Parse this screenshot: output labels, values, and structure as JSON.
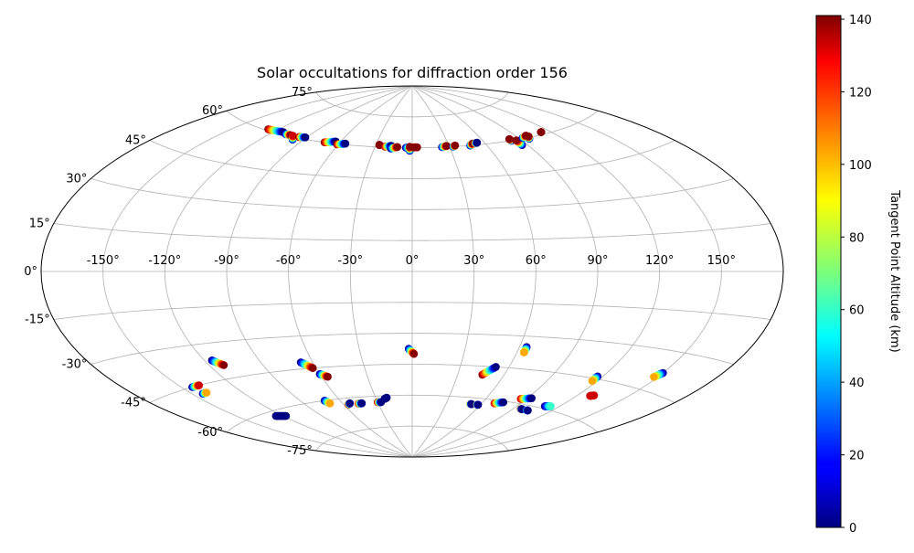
{
  "chart_data": {
    "type": "scatter",
    "projection": "aitoff",
    "title": "Solar occultations for diffraction order 156",
    "longitude_ticks": [
      {
        "value": -150,
        "label": "-150°"
      },
      {
        "value": -120,
        "label": "-120°"
      },
      {
        "value": -90,
        "label": "-90°"
      },
      {
        "value": -60,
        "label": "-60°"
      },
      {
        "value": -30,
        "label": "-30°"
      },
      {
        "value": 0,
        "label": "0°"
      },
      {
        "value": 30,
        "label": "30°"
      },
      {
        "value": 60,
        "label": "60°"
      },
      {
        "value": 90,
        "label": "90°"
      },
      {
        "value": 120,
        "label": "120°"
      },
      {
        "value": 150,
        "label": "150°"
      }
    ],
    "latitude_ticks": [
      {
        "value": 75,
        "label": "75°"
      },
      {
        "value": 60,
        "label": "60°"
      },
      {
        "value": 45,
        "label": "45°"
      },
      {
        "value": 30,
        "label": "30°"
      },
      {
        "value": 15,
        "label": "15°"
      },
      {
        "value": 0,
        "label": "0°"
      },
      {
        "value": -15,
        "label": "-15°"
      },
      {
        "value": -30,
        "label": "-30°"
      },
      {
        "value": -45,
        "label": "-45°"
      },
      {
        "value": -60,
        "label": "-60°"
      },
      {
        "value": -75,
        "label": "-75°"
      }
    ],
    "colorbar": {
      "label": "Tangent Point Altitude (km)",
      "min": 0,
      "max": 141,
      "ticks": [
        {
          "value": 0,
          "label": "0"
        },
        {
          "value": 20,
          "label": "20"
        },
        {
          "value": 40,
          "label": "40"
        },
        {
          "value": 60,
          "label": "60"
        },
        {
          "value": 80,
          "label": "80"
        },
        {
          "value": 100,
          "label": "100"
        },
        {
          "value": 120,
          "label": "120"
        },
        {
          "value": 140,
          "label": "140"
        }
      ],
      "colormap": "jet"
    },
    "occultations": [
      {
        "lon0": -127,
        "lat0": 60.5,
        "lon1": -113,
        "lat1": 61,
        "alt0": 140,
        "alt1": 0
      },
      {
        "lon0": -109,
        "lat0": 60.5,
        "lon1": -104,
        "lat1": 60.5,
        "alt0": 0,
        "alt1": 140
      },
      {
        "lon0": -98,
        "lat0": 59,
        "lon1": -102,
        "lat1": 60.5,
        "alt0": 0,
        "alt1": 130
      },
      {
        "lon0": -96,
        "lat0": 60.5,
        "lon1": -91,
        "lat1": 60.8,
        "alt0": 140,
        "alt1": 0
      },
      {
        "lon0": -72,
        "lat0": 60,
        "lon1": -64,
        "lat1": 61,
        "alt0": 140,
        "alt1": 0
      },
      {
        "lon0": -61,
        "lat0": 59.8,
        "lon1": -55,
        "lat1": 60.5,
        "alt0": 140,
        "alt1": 0
      },
      {
        "lon0": -27,
        "lat0": 61,
        "lon1": -27,
        "lat1": 61,
        "alt0": 140,
        "alt1": 140
      },
      {
        "lon0": -22,
        "lat0": 60.3,
        "lon1": -17,
        "lat1": 60.8,
        "alt0": 140,
        "alt1": 0
      },
      {
        "lon0": -17,
        "lat0": 59.5,
        "lon1": -12,
        "lat1": 60.3,
        "alt0": 0,
        "alt1": 140
      },
      {
        "lon0": -5,
        "lat0": 60,
        "lon1": 0,
        "lat1": 60,
        "alt0": 0,
        "alt1": 140
      },
      {
        "lon0": -2,
        "lat0": 58.5,
        "lon1": -2,
        "lat1": 60.5,
        "alt0": 0,
        "alt1": 140
      },
      {
        "lon0": 1,
        "lat0": 60.2,
        "lon1": 4,
        "lat1": 60.2,
        "alt0": 140,
        "alt1": 140
      },
      {
        "lon0": 24,
        "lat0": 60,
        "lon1": 28,
        "lat1": 60.5,
        "alt0": 0,
        "alt1": 140
      },
      {
        "lon0": 33,
        "lat0": 60,
        "lon1": 35,
        "lat1": 60.5,
        "alt0": 0,
        "alt1": 140
      },
      {
        "lon0": 47,
        "lat0": 60,
        "lon1": 50,
        "lat1": 60.8,
        "alt0": 0,
        "alt1": 140
      },
      {
        "lon0": 52,
        "lat0": 60.8,
        "lon1": 54,
        "lat1": 61,
        "alt0": 140,
        "alt1": 0
      },
      {
        "lon0": 82,
        "lat0": 60,
        "lon1": 82,
        "lat1": 60.8,
        "alt0": 0,
        "alt1": 140
      },
      {
        "lon0": 86,
        "lat0": 57.5,
        "lon1": 86,
        "lat1": 59.8,
        "alt0": 0,
        "alt1": 140
      },
      {
        "lon0": 93,
        "lat0": 60.3,
        "lon1": 98,
        "lat1": 61,
        "alt0": 0,
        "alt1": 140
      },
      {
        "lon0": 97,
        "lat0": 59.5,
        "lon1": 99,
        "lat1": 60.5,
        "alt0": 0,
        "alt1": 140
      },
      {
        "lon0": 113,
        "lat0": 61,
        "lon1": 113,
        "lat1": 61,
        "alt0": 140,
        "alt1": 140
      },
      {
        "lon0": -144,
        "lat0": -45,
        "lon1": -139,
        "lat1": -45,
        "alt0": 0,
        "alt1": 130
      },
      {
        "lon0": -144,
        "lat0": -48,
        "lon1": -141,
        "lat1": -48,
        "alt0": 0,
        "alt1": 100
      },
      {
        "lon0": -116,
        "lat0": -37,
        "lon1": -112,
        "lat1": -39.5,
        "alt0": 0,
        "alt1": 140
      },
      {
        "lon0": -125,
        "lat0": -62,
        "lon1": -118,
        "lat1": -63,
        "alt0": 0,
        "alt1": 0
      },
      {
        "lon0": -67,
        "lat0": -42,
        "lon1": -62,
        "lat1": -45,
        "alt0": 0,
        "alt1": 140
      },
      {
        "lon0": -60,
        "lat0": -48,
        "lon1": -56,
        "lat1": -49.5,
        "alt0": 0,
        "alt1": 140
      },
      {
        "lon0": -72,
        "lat0": -60,
        "lon1": -70,
        "lat1": -61.5,
        "alt0": 0,
        "alt1": 100
      },
      {
        "lon0": -56,
        "lat0": -63,
        "lon1": -54,
        "lat1": -62.5,
        "alt0": 140,
        "alt1": 0
      },
      {
        "lon0": -47,
        "lat0": -63,
        "lon1": -44,
        "lat1": -63,
        "alt0": 130,
        "alt1": 0
      },
      {
        "lon0": -30,
        "lat0": -63,
        "lon1": -27,
        "lat1": -63,
        "alt0": 140,
        "alt1": 0
      },
      {
        "lon0": -23,
        "lat0": -61.5,
        "lon1": -21,
        "lat1": -61,
        "alt0": 0,
        "alt1": 0
      },
      {
        "lon0": -2,
        "lat0": -37.5,
        "lon1": 1,
        "lat1": -40,
        "alt0": 0,
        "alt1": 140
      },
      {
        "lon0": 46,
        "lat0": -49,
        "lon1": 52,
        "lat1": -45,
        "alt0": 140,
        "alt1": 0
      },
      {
        "lon0": 64,
        "lat0": -35,
        "lon1": 64,
        "lat1": -37.5,
        "alt0": 0,
        "alt1": 100
      },
      {
        "lon0": 51,
        "lat0": -63,
        "lon1": 52,
        "lat1": -63,
        "alt0": 100,
        "alt1": 0
      },
      {
        "lon0": 57,
        "lat0": -63,
        "lon1": 58,
        "lat1": -63,
        "alt0": 100,
        "alt1": 0
      },
      {
        "lon0": 70,
        "lat0": -61.5,
        "lon1": 76,
        "lat1": -60.5,
        "alt0": 130,
        "alt1": 0
      },
      {
        "lon0": 86,
        "lat0": -58,
        "lon1": 93,
        "lat1": -57,
        "alt0": 130,
        "alt1": 0
      },
      {
        "lon0": 96,
        "lat0": -62,
        "lon1": 97,
        "lat1": -62,
        "alt0": 140,
        "alt1": 0
      },
      {
        "lon0": 102,
        "lat0": -62,
        "lon1": 103,
        "lat1": -62,
        "alt0": 60,
        "alt1": 0
      },
      {
        "lon0": 110,
        "lat0": -59,
        "lon1": 114,
        "lat1": -58.5,
        "alt0": 0,
        "alt1": 60
      },
      {
        "lon0": 117,
        "lat0": -44,
        "lon1": 117,
        "lat1": -46,
        "alt0": 0,
        "alt1": 100
      },
      {
        "lon0": 128,
        "lat0": -51.5,
        "lon1": 130,
        "lat1": -51,
        "alt0": 130,
        "alt1": 130
      },
      {
        "lon0": 150,
        "lat0": -38,
        "lon1": 148,
        "lat1": -40,
        "alt0": 0,
        "alt1": 100
      }
    ]
  }
}
